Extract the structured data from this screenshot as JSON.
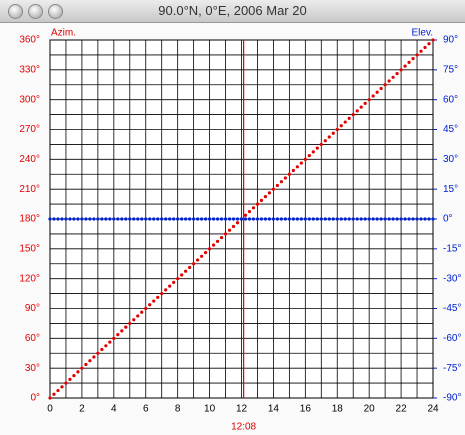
{
  "chart_data": {
    "type": "scatter",
    "title": "90.0°N, 0°E, 2006 Mar 20",
    "x": [
      0,
      0.25,
      0.5,
      0.75,
      1,
      1.25,
      1.5,
      1.75,
      2,
      2.25,
      2.5,
      2.75,
      3,
      3.25,
      3.5,
      3.75,
      4,
      4.25,
      4.5,
      4.75,
      5,
      5.25,
      5.5,
      5.75,
      6,
      6.25,
      6.5,
      6.75,
      7,
      7.25,
      7.5,
      7.75,
      8,
      8.25,
      8.5,
      8.75,
      9,
      9.25,
      9.5,
      9.75,
      10,
      10.25,
      10.5,
      10.75,
      11,
      11.25,
      11.5,
      11.75,
      12,
      12.25,
      12.5,
      12.75,
      13,
      13.25,
      13.5,
      13.75,
      14,
      14.25,
      14.5,
      14.75,
      15,
      15.25,
      15.5,
      15.75,
      16,
      16.25,
      16.5,
      16.75,
      17,
      17.25,
      17.5,
      17.75,
      18,
      18.25,
      18.5,
      18.75,
      19,
      19.25,
      19.5,
      19.75,
      20,
      20.25,
      20.5,
      20.75,
      21,
      21.25,
      21.5,
      21.75,
      22,
      22.25,
      22.5,
      22.75,
      23,
      23.25,
      23.5,
      23.75,
      24
    ],
    "series": [
      {
        "name": "Azim.",
        "color": "#e00000",
        "values": [
          0,
          3.75,
          7.5,
          11.25,
          15,
          18.75,
          22.5,
          26.25,
          30,
          33.75,
          37.5,
          41.25,
          45,
          48.75,
          52.5,
          56.25,
          60,
          63.75,
          67.5,
          71.25,
          75,
          78.75,
          82.5,
          86.25,
          90,
          93.75,
          97.5,
          101.25,
          105,
          108.75,
          112.5,
          116.25,
          120,
          123.75,
          127.5,
          131.25,
          135,
          138.75,
          142.5,
          146.25,
          150,
          153.75,
          157.5,
          161.25,
          165,
          168.75,
          172.5,
          176.25,
          180,
          183.75,
          187.5,
          191.25,
          195,
          198.75,
          202.5,
          206.25,
          210,
          213.75,
          217.5,
          221.25,
          225,
          228.75,
          232.5,
          236.25,
          240,
          243.75,
          247.5,
          251.25,
          255,
          258.75,
          262.5,
          266.25,
          270,
          273.75,
          277.5,
          281.25,
          285,
          288.75,
          292.5,
          296.25,
          300,
          303.75,
          307.5,
          311.25,
          315,
          318.75,
          322.5,
          326.25,
          330,
          333.75,
          337.5,
          341.25,
          345,
          348.75,
          352.5,
          356.25,
          360
        ]
      },
      {
        "name": "Elev.",
        "color": "#0020d0",
        "axis": "y2",
        "values": [
          0,
          0,
          0,
          0,
          0,
          0,
          0,
          0,
          0,
          0,
          0,
          0,
          0,
          0,
          0,
          0,
          0,
          0,
          0,
          0,
          0,
          0,
          0,
          0,
          0,
          0,
          0,
          0,
          0,
          0,
          0,
          0,
          0,
          0,
          0,
          0,
          0,
          0,
          0,
          0,
          0,
          0,
          0,
          0,
          0,
          0,
          0,
          0,
          0,
          0,
          0,
          0,
          0,
          0,
          0,
          0,
          0,
          0,
          0,
          0,
          0,
          0,
          0,
          0,
          0,
          0,
          0,
          0,
          0,
          0,
          0,
          0,
          0,
          0,
          0,
          0,
          0,
          0,
          0,
          0,
          0,
          0,
          0,
          0,
          0,
          0,
          0,
          0,
          0,
          0,
          0,
          0,
          0,
          0,
          0,
          0,
          0
        ]
      }
    ],
    "xlim": [
      0,
      24
    ],
    "xticks": [
      0,
      2,
      4,
      6,
      8,
      10,
      12,
      14,
      16,
      18,
      20,
      22,
      24
    ],
    "ylim": [
      0,
      360
    ],
    "yticks": [
      {
        "value": 0,
        "label": "0°"
      },
      {
        "value": 30,
        "label": "30°"
      },
      {
        "value": 60,
        "label": "60°"
      },
      {
        "value": 90,
        "label": "90°"
      },
      {
        "value": 120,
        "label": "120°"
      },
      {
        "value": 150,
        "label": "150°"
      },
      {
        "value": 180,
        "label": "180°"
      },
      {
        "value": 210,
        "label": "210°"
      },
      {
        "value": 240,
        "label": "240°"
      },
      {
        "value": 270,
        "label": "270°"
      },
      {
        "value": 300,
        "label": "300°"
      },
      {
        "value": 330,
        "label": "330°"
      },
      {
        "value": 360,
        "label": "360°"
      }
    ],
    "y2lim": [
      -90,
      90
    ],
    "y2ticks": [
      {
        "value": -90,
        "label": "-90°"
      },
      {
        "value": -75,
        "label": "-75°"
      },
      {
        "value": -60,
        "label": "-60°"
      },
      {
        "value": -45,
        "label": "-45°"
      },
      {
        "value": -30,
        "label": "-30°"
      },
      {
        "value": -15,
        "label": "-15°"
      },
      {
        "value": 0,
        "label": "0°"
      },
      {
        "value": 15,
        "label": "15°"
      },
      {
        "value": 30,
        "label": "30°"
      },
      {
        "value": 45,
        "label": "45°"
      },
      {
        "value": 60,
        "label": "60°"
      },
      {
        "value": 75,
        "label": "75°"
      },
      {
        "value": 90,
        "label": "90°"
      }
    ],
    "grid": true,
    "marker": {
      "x": 12.133,
      "label": "12:08",
      "color": "#e00000"
    }
  }
}
